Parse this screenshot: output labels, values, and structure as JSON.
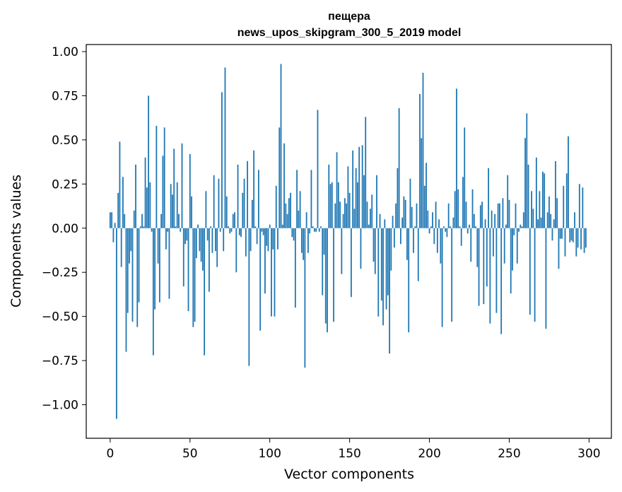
{
  "chart_data": {
    "type": "bar",
    "title_line1": "пещера",
    "title_line2": "news_upos_skipgram_300_5_2019 model",
    "xlabel": "Vector components",
    "ylabel": "Components values",
    "xlim": [
      -15,
      314
    ],
    "ylim": [
      -1.19,
      1.04
    ],
    "xticks": [
      0,
      50,
      100,
      150,
      200,
      250,
      300
    ],
    "xtick_labels": [
      "0",
      "50",
      "100",
      "150",
      "200",
      "250",
      "300"
    ],
    "yticks": [
      -1.0,
      -0.75,
      -0.5,
      -0.25,
      0.0,
      0.25,
      0.5,
      0.75,
      1.0
    ],
    "ytick_labels": [
      "−1.00",
      "−0.75",
      "−0.50",
      "−0.25",
      "0.00",
      "0.25",
      "0.50",
      "0.75",
      "1.00"
    ],
    "grid": false,
    "bar_color": "#1f77b4",
    "values": [
      0.09,
      0.09,
      -0.08,
      0.03,
      -1.08,
      0.2,
      0.49,
      -0.22,
      0.29,
      0.08,
      -0.7,
      -0.48,
      -0.2,
      -0.13,
      -0.53,
      0.1,
      0.36,
      -0.56,
      -0.42,
      0.01,
      0.08,
      0.01,
      0.4,
      0.23,
      0.75,
      0.26,
      -0.02,
      -0.72,
      -0.46,
      0.58,
      -0.2,
      -0.42,
      0.08,
      0.41,
      0.57,
      -0.12,
      -0.02,
      -0.4,
      0.25,
      0.19,
      0.45,
      0.01,
      0.26,
      0.08,
      -0.02,
      0.48,
      -0.33,
      -0.09,
      -0.07,
      -0.47,
      0.42,
      0.18,
      -0.56,
      -0.53,
      -0.17,
      0.02,
      -0.13,
      -0.19,
      -0.24,
      -0.72,
      0.21,
      -0.07,
      -0.36,
      0.01,
      -0.14,
      0.3,
      -0.13,
      -0.22,
      0.28,
      -0.02,
      0.77,
      -0.13,
      0.91,
      0.18,
      0.01,
      -0.03,
      -0.02,
      0.08,
      0.09,
      -0.25,
      0.36,
      -0.04,
      -0.05,
      0.2,
      0.28,
      -0.16,
      0.38,
      -0.78,
      -0.13,
      0.16,
      0.44,
      0.01,
      -0.09,
      0.33,
      -0.58,
      -0.02,
      -0.04,
      -0.37,
      -0.1,
      -0.13,
      0.02,
      -0.5,
      -0.12,
      -0.5,
      0.24,
      -0.12,
      0.57,
      0.93,
      0.02,
      0.48,
      0.14,
      0.08,
      0.17,
      0.2,
      -0.05,
      -0.07,
      -0.45,
      0.33,
      0.1,
      0.21,
      -0.14,
      -0.18,
      -0.79,
      0.09,
      -0.14,
      -0.03,
      0.33,
      0.01,
      -0.02,
      -0.02,
      0.67,
      -0.02,
      0.01,
      -0.38,
      -0.15,
      -0.54,
      -0.59,
      0.36,
      0.25,
      0.26,
      -0.53,
      0.14,
      0.43,
      0.26,
      0.15,
      -0.26,
      0.08,
      0.17,
      0.14,
      0.35,
      0.2,
      -0.39,
      0.44,
      0.11,
      0.34,
      0.26,
      0.46,
      -0.23,
      0.47,
      0.3,
      0.63,
      0.15,
      0.02,
      0.11,
      0.19,
      -0.19,
      -0.26,
      0.3,
      -0.5,
      0.08,
      -0.41,
      -0.55,
      0.05,
      -0.46,
      -0.38,
      -0.71,
      -0.24,
      0.07,
      -0.11,
      0.14,
      0.34,
      0.68,
      -0.09,
      0.06,
      0.18,
      0.16,
      -0.18,
      -0.59,
      0.28,
      0.12,
      -0.14,
      0.01,
      0.14,
      -0.3,
      0.76,
      0.51,
      0.88,
      0.24,
      0.37,
      0.1,
      -0.03,
      0.01,
      0.09,
      -0.09,
      0.15,
      -0.14,
      0.05,
      -0.2,
      -0.56,
      0.01,
      -0.02,
      -0.05,
      0.14,
      0.01,
      -0.53,
      0.06,
      0.21,
      0.79,
      0.22,
      0.01,
      -0.1,
      0.29,
      0.57,
      0.15,
      -0.03,
      0.02,
      -0.19,
      0.22,
      0.08,
      0.01,
      -0.22,
      -0.44,
      0.13,
      0.15,
      -0.43,
      0.05,
      -0.33,
      0.34,
      -0.54,
      0.1,
      -0.16,
      0.08,
      -0.48,
      0.14,
      0.14,
      -0.6,
      0.17,
      -0.2,
      0.02,
      0.3,
      0.16,
      -0.37,
      -0.24,
      -0.04,
      0.14,
      -0.2,
      -0.02,
      0.02,
      0.01,
      0.09,
      0.51,
      0.65,
      0.36,
      -0.49,
      0.21,
      0.11,
      -0.53,
      0.4,
      0.05,
      0.21,
      0.06,
      0.32,
      0.31,
      -0.57,
      0.09,
      0.18,
      0.08,
      -0.07,
      0.05,
      0.38,
      0.17,
      -0.23,
      -0.06,
      -0.06,
      0.24,
      -0.16,
      0.31,
      0.52,
      -0.08,
      -0.07,
      -0.08,
      0.09,
      -0.16,
      -0.11,
      0.25,
      -0.12,
      0.23,
      -0.14,
      -0.11
    ]
  }
}
